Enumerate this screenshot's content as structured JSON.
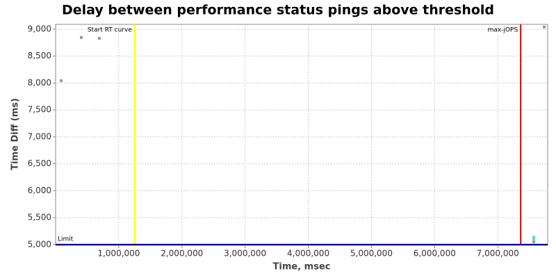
{
  "chart_data": {
    "type": "scatter",
    "title": "Delay between performance status pings above threshold",
    "x_label": "Time, msec",
    "y_label": "Time Diff (ms)",
    "series": [
      {
        "color": "#999999",
        "x": [
          88000,
          407000,
          692000,
          7736000,
          7571000
        ],
        "values": [
          8042,
          8845,
          8830,
          9040,
          5050
        ]
      },
      {
        "color": "#77cccc",
        "x": [
          7571000,
          7571000
        ],
        "values": [
          5140,
          5090
        ]
      }
    ],
    "xlim": [
      0,
      7790000
    ],
    "ylim": [
      4985,
      9090
    ],
    "xticks": [
      {
        "value": 1000000,
        "label": "1,000,000"
      },
      {
        "value": 2000000,
        "label": "2,000,000"
      },
      {
        "value": 3000000,
        "label": "3,000,000"
      },
      {
        "value": 4000000,
        "label": "4,000,000"
      },
      {
        "value": 5000000,
        "label": "5,000,000"
      },
      {
        "value": 6000000,
        "label": "6,000,000"
      },
      {
        "value": 7000000,
        "label": "7,000,000"
      }
    ],
    "yticks": [
      {
        "value": 5000,
        "label": "5,000"
      },
      {
        "value": 5500,
        "label": "5,500"
      },
      {
        "value": 6000,
        "label": "6,000"
      },
      {
        "value": 6500,
        "label": "6,500"
      },
      {
        "value": 7000,
        "label": "7,000"
      },
      {
        "value": 7500,
        "label": "7,500"
      },
      {
        "value": 8000,
        "label": "8,000"
      },
      {
        "value": 8500,
        "label": "8,500"
      },
      {
        "value": 9000,
        "label": "9,000"
      }
    ],
    "grid": true,
    "vlines": [
      {
        "label": "Start RT curve",
        "x": 1253000,
        "color": "#ffff00"
      },
      {
        "label": "max-jOPS",
        "x": 7363000,
        "color": "#dd0000"
      }
    ],
    "hlines": [
      {
        "label": "Limit",
        "y": 5000,
        "color": "#000080"
      }
    ]
  }
}
